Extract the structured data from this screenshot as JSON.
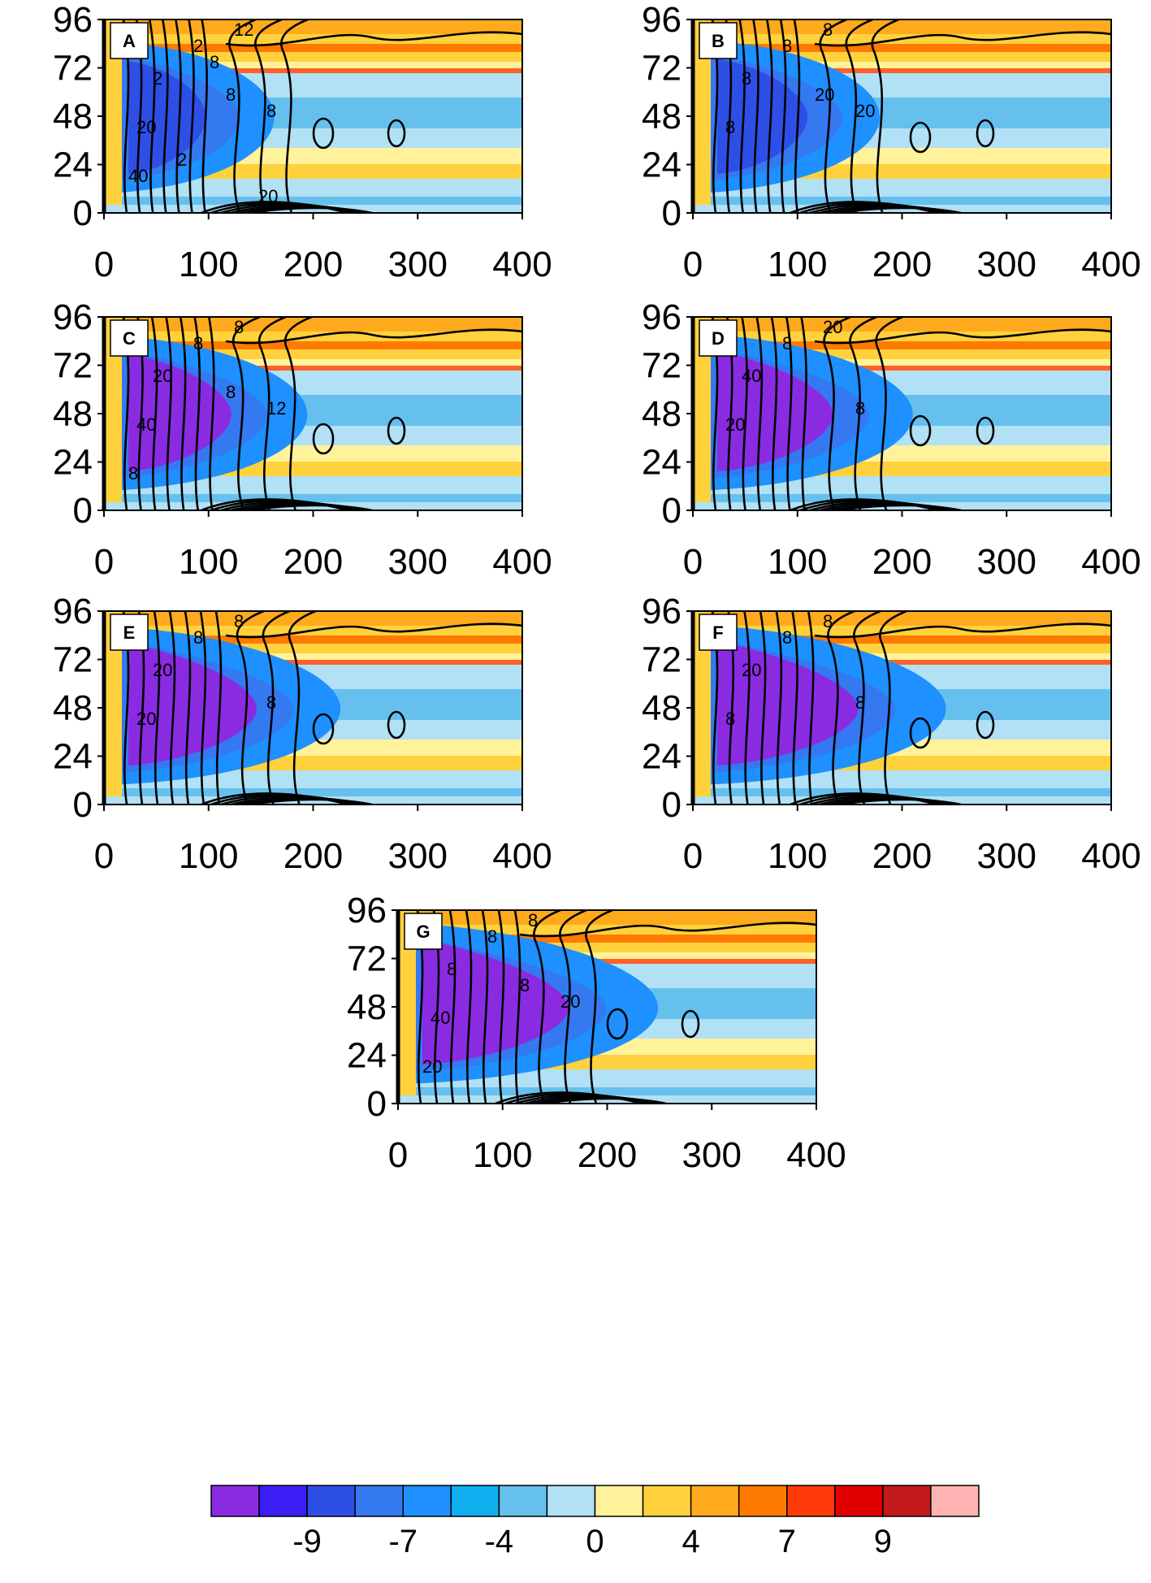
{
  "chart_data": {
    "type": "heatmap",
    "description_units": "shaded field with overlaid black contours",
    "x_ticks": [
      0,
      100,
      200,
      300,
      400
    ],
    "y_ticks": [
      0,
      24,
      48,
      72,
      96
    ],
    "xlim": [
      0,
      400
    ],
    "ylim": [
      0,
      96
    ],
    "panels": [
      {
        "label": "A",
        "contour_labels": [
          "2",
          "12",
          "2",
          "8",
          "20",
          "8",
          "40",
          "2",
          "8",
          "20"
        ]
      },
      {
        "label": "B",
        "contour_labels": [
          "8",
          "8",
          "8",
          "20",
          "8",
          "20"
        ]
      },
      {
        "label": "C",
        "contour_labels": [
          "8",
          "8",
          "20",
          "12",
          "40",
          "8",
          "8"
        ]
      },
      {
        "label": "D",
        "contour_labels": [
          "8",
          "20",
          "40",
          "8",
          "20"
        ]
      },
      {
        "label": "E",
        "contour_labels": [
          "8",
          "8",
          "20",
          "8",
          "20"
        ]
      },
      {
        "label": "F",
        "contour_labels": [
          "8",
          "8",
          "20",
          "8",
          "8"
        ]
      },
      {
        "label": "G",
        "contour_labels": [
          "8",
          "8",
          "8",
          "20",
          "40",
          "8",
          "20"
        ]
      }
    ],
    "colorbar": {
      "colors": [
        "#8a2be2",
        "#3a1ef5",
        "#2e4fe6",
        "#3479f0",
        "#1e90ff",
        "#10b0f0",
        "#66c0ee",
        "#b2e0f4",
        "#fff29a",
        "#ffd23d",
        "#ffaa1c",
        "#ff7a00",
        "#ff3b0a",
        "#e00000",
        "#c21a1a",
        "#ffb3b3"
      ],
      "tick_labels": [
        "-9",
        "-7",
        "-4",
        "0",
        "4",
        "7",
        "9"
      ]
    }
  }
}
